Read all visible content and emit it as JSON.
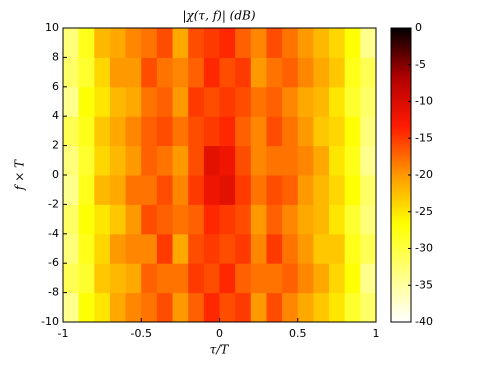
{
  "chart_data": {
    "type": "heatmap",
    "title": "|χ(τ, f)| (dB)",
    "x_label": "τ/T",
    "y_label": "f × T",
    "x": [
      -0.95,
      -0.85,
      -0.75,
      -0.65,
      -0.55,
      -0.45,
      -0.35,
      -0.25,
      -0.15,
      -0.05,
      0.05,
      0.15,
      0.25,
      0.35,
      0.45,
      0.55,
      0.65,
      0.75,
      0.85,
      0.95
    ],
    "y": [
      -9,
      -7,
      -5,
      -3,
      -1,
      1,
      3,
      5,
      7,
      9
    ],
    "values": [
      [
        -34,
        -27,
        -25,
        -21,
        -19,
        -18,
        -16,
        -20,
        -17,
        -14,
        -16,
        -15,
        -20,
        -16,
        -19,
        -21,
        -23,
        -25,
        -29,
        -32
      ],
      [
        -31,
        -29,
        -23,
        -22,
        -21,
        -17,
        -18,
        -18,
        -15,
        -16,
        -14,
        -17,
        -18,
        -18,
        -17,
        -19,
        -21,
        -24,
        -27,
        -34
      ],
      [
        -33,
        -28,
        -24,
        -20,
        -19,
        -19,
        -15,
        -21,
        -16,
        -15,
        -16,
        -15,
        -19,
        -15,
        -18,
        -20,
        -23,
        -23,
        -28,
        -31
      ],
      [
        -32,
        -27,
        -25,
        -23,
        -20,
        -16,
        -17,
        -18,
        -17,
        -14,
        -15,
        -16,
        -20,
        -17,
        -19,
        -21,
        -22,
        -25,
        -29,
        -33
      ],
      [
        -34,
        -28,
        -22,
        -21,
        -18,
        -18,
        -16,
        -19,
        -15,
        -12,
        -11,
        -15,
        -18,
        -16,
        -17,
        -20,
        -22,
        -24,
        -27,
        -32
      ],
      [
        -33,
        -29,
        -24,
        -22,
        -20,
        -17,
        -18,
        -20,
        -16,
        -11,
        -12,
        -16,
        -19,
        -18,
        -18,
        -19,
        -21,
        -25,
        -28,
        -34
      ],
      [
        -31,
        -28,
        -23,
        -21,
        -19,
        -17,
        -16,
        -18,
        -16,
        -15,
        -14,
        -17,
        -19,
        -16,
        -18,
        -20,
        -23,
        -24,
        -27,
        -33
      ],
      [
        -34,
        -27,
        -25,
        -22,
        -21,
        -18,
        -17,
        -20,
        -15,
        -16,
        -15,
        -16,
        -18,
        -17,
        -19,
        -21,
        -22,
        -25,
        -29,
        -32
      ],
      [
        -32,
        -29,
        -24,
        -20,
        -20,
        -16,
        -18,
        -19,
        -17,
        -14,
        -16,
        -15,
        -20,
        -18,
        -17,
        -19,
        -21,
        -23,
        -28,
        -31
      ],
      [
        -33,
        -28,
        -22,
        -21,
        -19,
        -18,
        -16,
        -21,
        -16,
        -15,
        -14,
        -17,
        -19,
        -16,
        -18,
        -20,
        -22,
        -24,
        -27,
        -34
      ]
    ],
    "xlim": [
      -1,
      1
    ],
    "xticks": [
      -1,
      -0.5,
      0,
      0.5,
      1
    ],
    "ylim": [
      -10,
      10
    ],
    "yticks": [
      -10,
      -8,
      -6,
      -4,
      -2,
      0,
      2,
      4,
      6,
      8,
      10
    ],
    "clim": [
      -40,
      0
    ],
    "cticks": [
      0,
      -5,
      -10,
      -15,
      -20,
      -25,
      -30,
      -35,
      -40
    ],
    "colormap": [
      "#ffffff",
      "#ffff80",
      "#ffff00",
      "#ff9900",
      "#ff1a00",
      "#b00000",
      "#000000"
    ]
  }
}
